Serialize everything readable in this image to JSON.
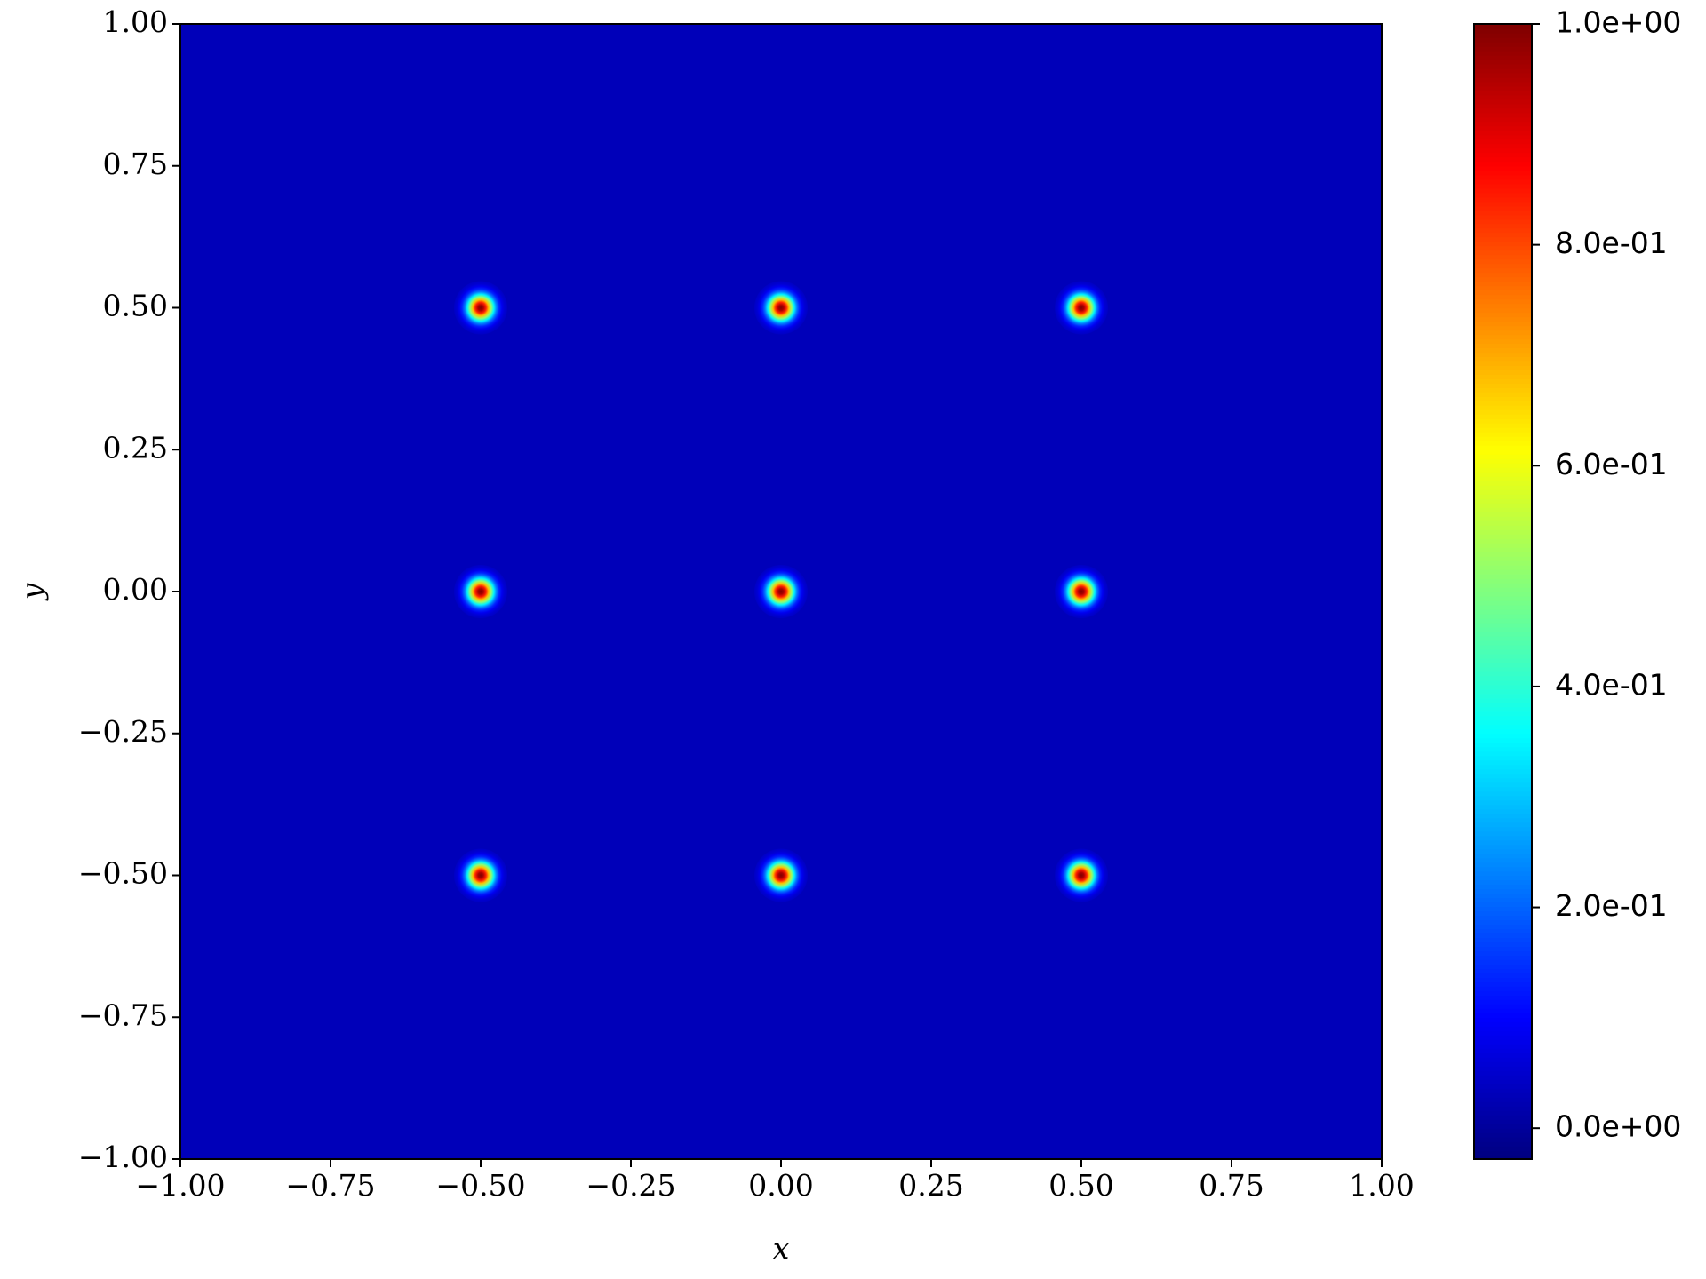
{
  "chart_data": {
    "type": "heatmap",
    "x_label": "x",
    "y_label": "y",
    "x": [
      -0.5,
      0,
      0.5,
      -0.5,
      0,
      0.5,
      -0.5,
      0,
      0.5
    ],
    "y": [
      0.5,
      0.5,
      0.5,
      0,
      0,
      0,
      -0.5,
      -0.5,
      -0.5
    ],
    "values": [
      1.0,
      1.0,
      1.0,
      1.0,
      1.0,
      1.0,
      1.0,
      1.0,
      1.0
    ],
    "background_value": 0.03,
    "colormap": "jet",
    "xlim": [
      -1,
      1
    ],
    "ylim": [
      -1,
      1
    ],
    "xticks": [
      {
        "value": -1,
        "label": "−1.00"
      },
      {
        "value": -0.75,
        "label": "−0.75"
      },
      {
        "value": -0.5,
        "label": "−0.50"
      },
      {
        "value": -0.25,
        "label": "−0.25"
      },
      {
        "value": 0,
        "label": "0.00"
      },
      {
        "value": 0.25,
        "label": "0.25"
      },
      {
        "value": 0.5,
        "label": "0.50"
      },
      {
        "value": 0.75,
        "label": "0.75"
      },
      {
        "value": 1,
        "label": "1.00"
      }
    ],
    "yticks": [
      {
        "value": -1,
        "label": "−1.00"
      },
      {
        "value": -0.75,
        "label": "−0.75"
      },
      {
        "value": -0.5,
        "label": "−0.50"
      },
      {
        "value": -0.25,
        "label": "−0.25"
      },
      {
        "value": 0,
        "label": "0.00"
      },
      {
        "value": 0.25,
        "label": "0.25"
      },
      {
        "value": 0.5,
        "label": "0.50"
      },
      {
        "value": 0.75,
        "label": "0.75"
      },
      {
        "value": 1,
        "label": "1.00"
      }
    ],
    "clim": [
      -0.028,
      1.0
    ],
    "cticks": [
      {
        "value": 0,
        "label": "0.0e+00"
      },
      {
        "value": 0.2,
        "label": "2.0e-01"
      },
      {
        "value": 0.4,
        "label": "4.0e-01"
      },
      {
        "value": 0.6,
        "label": "6.0e-01"
      },
      {
        "value": 0.8,
        "label": "8.0e-01"
      },
      {
        "value": 1,
        "label": "1.0e+00"
      }
    ]
  }
}
